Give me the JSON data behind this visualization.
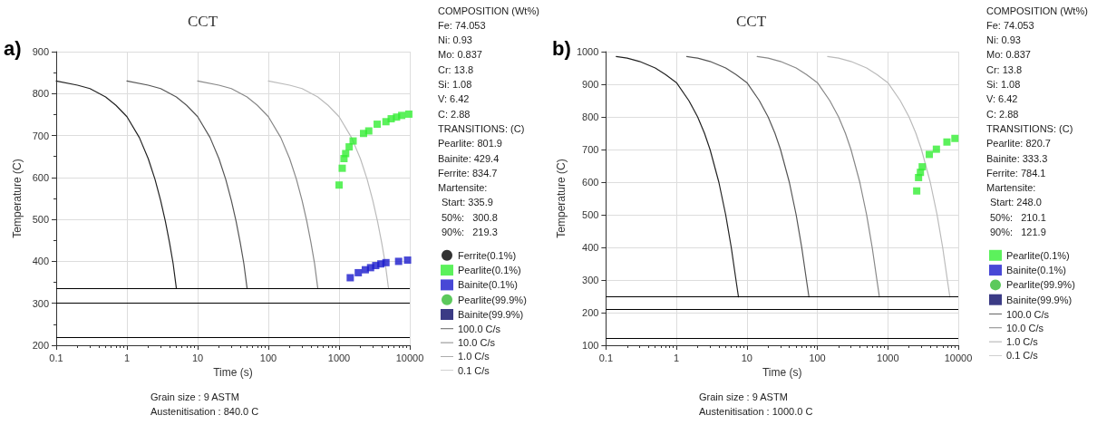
{
  "chart_data": [
    {
      "type": "line",
      "title": "CCT",
      "xlabel": "Time (s)",
      "ylabel": "Temperature (C)",
      "log": "x",
      "xlim": [
        0.1,
        10000
      ],
      "xticks": [
        0.1,
        1,
        10,
        100,
        1000,
        10000
      ],
      "ylim": [
        200,
        900
      ],
      "yticks": [
        200,
        300,
        400,
        500,
        600,
        700,
        800,
        900
      ],
      "grid": true,
      "legend": "right",
      "annotations": [
        "a)",
        "COMPOSITION (Wt%)",
        "Fe: 74.053",
        "Ni: 0.93",
        "Mo: 0.837",
        "Cr: 13.8",
        "Si: 1.08",
        "V: 6.42",
        "C: 2.88",
        "TRANSITIONS: (C)",
        "Pearlite: 801.9",
        "Bainite: 429.4",
        "Ferrite: 834.7",
        "Martensite:",
        "Start: 335.9",
        "50%:   300.8",
        "90%:   219.3",
        "Grain size : 9 ASTM",
        "Austenitisation : 840.0 C"
      ],
      "ref_lines": [
        {
          "axis": "y",
          "value": 335.9,
          "color": "#000000"
        },
        {
          "axis": "y",
          "value": 300.8,
          "color": "#000000"
        },
        {
          "axis": "y",
          "value": 219.3,
          "color": "#000000"
        }
      ],
      "series": [
        {
          "name": "Ferrite(0.1%)",
          "type": "scatter",
          "marker": "circle",
          "color": "#000000"
        },
        {
          "name": "Pearlite(0.1%)",
          "type": "scatter",
          "marker": "square",
          "color": "#33ee33",
          "x": [
            1000,
            1108,
            1173,
            1240,
            1390,
            1580,
            2220,
            2630,
            3460,
            4600,
            5460,
            6500,
            7690,
            9700
          ],
          "values": [
            582,
            622,
            645,
            657,
            673,
            687,
            705,
            711,
            727,
            733,
            740,
            744,
            748,
            751
          ]
        },
        {
          "name": "Bainite(0.1%)",
          "type": "scatter",
          "marker": "square",
          "color": "#1a1acc",
          "x": [
            1440,
            1870,
            2350,
            2790,
            3300,
            3900,
            4600,
            6950,
            9300
          ],
          "values": [
            361,
            373,
            380,
            385,
            390,
            394,
            397,
            400,
            403
          ]
        },
        {
          "name": "Pearlite(99.9%)",
          "type": "scatter",
          "marker": "circle",
          "color": "#33bb33"
        },
        {
          "name": "Bainite(99.9%)",
          "type": "scatter",
          "marker": "square",
          "color": "#0a0a66"
        },
        {
          "name": "100.0 C/s",
          "marker": "none",
          "color": "#222222",
          "x": [
            0.1,
            0.2,
            0.3,
            0.5,
            0.7,
            1,
            1.5,
            2,
            2.5,
            3,
            3.5,
            4,
            4.5,
            5
          ],
          "values": [
            830,
            820,
            812,
            792,
            772,
            745,
            695,
            645,
            595,
            545,
            495,
            445,
            395,
            336
          ]
        },
        {
          "name": "10.0 C/s",
          "marker": "none",
          "color": "#555555",
          "x": [
            1,
            2,
            3,
            5,
            7,
            10,
            15,
            20,
            25,
            30,
            35,
            40,
            45,
            50
          ],
          "values": [
            830,
            820,
            812,
            792,
            772,
            745,
            695,
            645,
            595,
            545,
            495,
            445,
            395,
            336
          ]
        },
        {
          "name": "1.0 C/s",
          "marker": "none",
          "color": "#888888",
          "x": [
            10,
            20,
            30,
            50,
            70,
            100,
            150,
            200,
            250,
            300,
            350,
            400,
            450,
            500
          ],
          "values": [
            830,
            820,
            812,
            792,
            772,
            745,
            695,
            645,
            595,
            545,
            495,
            445,
            395,
            336
          ]
        },
        {
          "name": "0.1 C/s",
          "marker": "none",
          "color": "#bbbbbb",
          "x": [
            100,
            200,
            300,
            500,
            700,
            1000,
            1500,
            2000,
            2500,
            3000,
            3500,
            4000,
            4500,
            5000
          ],
          "values": [
            830,
            820,
            812,
            792,
            772,
            745,
            695,
            645,
            595,
            545,
            495,
            445,
            395,
            336
          ]
        }
      ]
    },
    {
      "type": "line",
      "title": "CCT",
      "xlabel": "Time (s)",
      "ylabel": "Temperature (C)",
      "log": "x",
      "xlim": [
        0.1,
        10000
      ],
      "xticks": [
        0.1,
        1,
        10,
        100,
        1000,
        10000
      ],
      "ylim": [
        100,
        1000
      ],
      "yticks": [
        100,
        200,
        300,
        400,
        500,
        600,
        700,
        800,
        900,
        1000
      ],
      "grid": true,
      "legend": "right",
      "annotations": [
        "b)",
        "COMPOSITION (Wt%)",
        "Fe: 74.053",
        "Ni: 0.93",
        "Mo: 0.837",
        "Cr: 13.8",
        "Si: 1.08",
        "V: 6.42",
        "C: 2.88",
        "TRANSITIONS: (C)",
        "Pearlite: 820.7",
        "Bainite: 333.3",
        "Ferrite: 784.1",
        "Martensite:",
        "Start: 248.0",
        "50%:   210.1",
        "90%:   121.9",
        "Grain size : 9 ASTM",
        "Austenitisation : 1000.0 C"
      ],
      "ref_lines": [
        {
          "axis": "y",
          "value": 248.0,
          "color": "#000000"
        },
        {
          "axis": "y",
          "value": 210.1,
          "color": "#000000"
        },
        {
          "axis": "y",
          "value": 121.9,
          "color": "#000000"
        }
      ],
      "series": [
        {
          "name": "Pearlite(0.1%)",
          "type": "scatter",
          "marker": "square",
          "color": "#33ee33",
          "x": [
            2570,
            2730,
            2900,
            3080,
            3880,
            4890,
            6900,
            8960
          ],
          "values": [
            573,
            614,
            630,
            647,
            685,
            701,
            723,
            734
          ]
        },
        {
          "name": "Bainite(0.1%)",
          "type": "scatter",
          "marker": "square",
          "color": "#1a1acc"
        },
        {
          "name": "Pearlite(99.9%)",
          "type": "scatter",
          "marker": "circle",
          "color": "#33bb33"
        },
        {
          "name": "Bainite(99.9%)",
          "type": "scatter",
          "marker": "square",
          "color": "#0a0a66"
        },
        {
          "name": "100.0 C/s",
          "marker": "none",
          "color": "#222222",
          "x": [
            0.14,
            0.2,
            0.3,
            0.5,
            0.7,
            1,
            1.5,
            2,
            2.5,
            3,
            4,
            5,
            6,
            7,
            7.6
          ],
          "values": [
            985,
            980,
            970,
            950,
            930,
            905,
            850,
            800,
            750,
            700,
            600,
            500,
            400,
            300,
            248
          ]
        },
        {
          "name": "10.0 C/s",
          "marker": "none",
          "color": "#555555",
          "x": [
            1.4,
            2,
            3,
            5,
            7,
            10,
            15,
            20,
            25,
            30,
            40,
            50,
            60,
            70,
            76
          ],
          "values": [
            985,
            980,
            970,
            950,
            930,
            905,
            850,
            800,
            750,
            700,
            600,
            500,
            400,
            300,
            248
          ]
        },
        {
          "name": "1.0 C/s",
          "marker": "none",
          "color": "#888888",
          "x": [
            14,
            20,
            30,
            50,
            70,
            100,
            150,
            200,
            250,
            300,
            400,
            500,
            600,
            700,
            760
          ],
          "values": [
            985,
            980,
            970,
            950,
            930,
            905,
            850,
            800,
            750,
            700,
            600,
            500,
            400,
            300,
            248
          ]
        },
        {
          "name": "0.1 C/s",
          "marker": "none",
          "color": "#bbbbbb",
          "x": [
            140,
            200,
            300,
            500,
            700,
            1000,
            1500,
            2000,
            2500,
            3000,
            4000,
            5000,
            6000,
            7000,
            7600
          ],
          "values": [
            985,
            980,
            970,
            950,
            930,
            905,
            850,
            800,
            750,
            700,
            600,
            500,
            400,
            300,
            248
          ]
        }
      ]
    }
  ]
}
